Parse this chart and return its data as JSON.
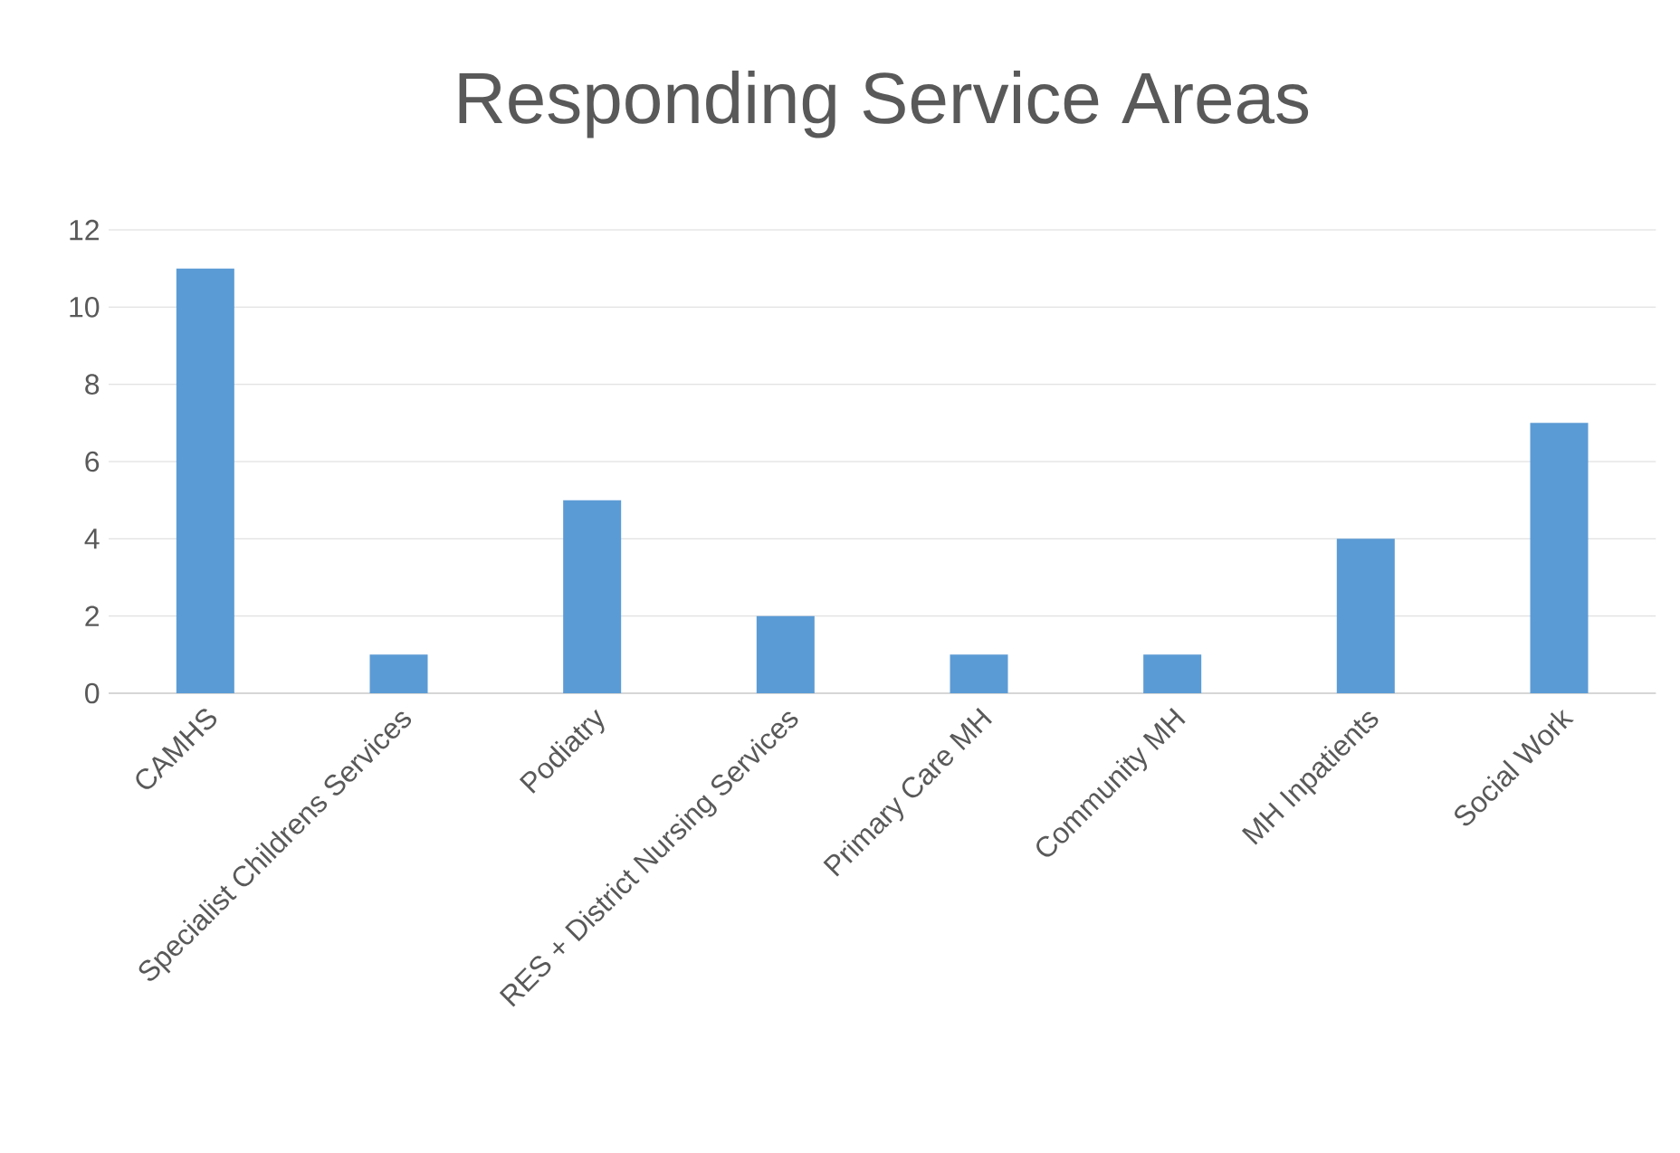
{
  "chart_data": {
    "type": "bar",
    "title": "Responding Service Areas",
    "categories": [
      "CAMHS",
      "Specialist Childrens Services",
      "Podiatry",
      "RES + District Nursing Services",
      "Primary Care MH",
      "Community MH",
      "MH Inpatients",
      "Social Work"
    ],
    "values": [
      11,
      1,
      5,
      2,
      1,
      1,
      4,
      7
    ],
    "color": "#5b9bd5",
    "ylim": [
      0,
      12
    ],
    "yticks": [
      0,
      2,
      4,
      6,
      8,
      10,
      12
    ],
    "grid": "y"
  }
}
